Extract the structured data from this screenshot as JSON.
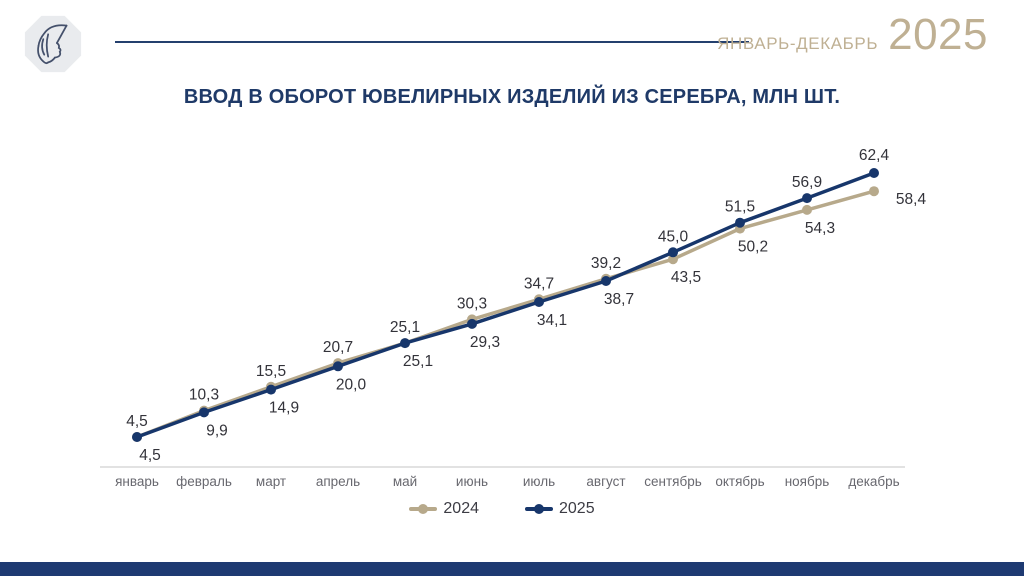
{
  "header": {
    "period_label": "ЯНВАРЬ-ДЕКАБРЬ",
    "year": "2025",
    "logo": "assay-chamber-woman-head-hallmark"
  },
  "title": "ВВОД В ОБОРОТ ЮВЕЛИРНЫХ ИЗДЕЛИЙ ИЗ СЕРЕБРА, МЛН ШТ.",
  "colors": {
    "navy": "#17366b",
    "beige": "#b7a98b",
    "title_navy": "#1f3a68",
    "header_rule": "#24406e",
    "period_tan": "#bfb093",
    "axis_gray": "#d9d9d9",
    "label_dark": "#33333a",
    "month_gray": "#68686f",
    "footer_navy": "#1e3a72"
  },
  "chart_data": {
    "type": "line",
    "title": "ВВОД В ОБОРОТ ЮВЕЛИРНЫХ ИЗДЕЛИЙ ИЗ СЕРЕБРА, МЛН ШТ.",
    "unit": "млн шт.",
    "value_format": "comma-decimal",
    "grid": false,
    "legend_position": "bottom",
    "ylim": [
      0,
      70
    ],
    "categories": [
      "январь",
      "февраль",
      "март",
      "апрель",
      "май",
      "июнь",
      "июль",
      "август",
      "сентябрь",
      "октябрь",
      "ноябрь",
      "декабрь"
    ],
    "series": [
      {
        "name": "2024",
        "color_key": "beige",
        "values": [
          4.5,
          10.3,
          15.5,
          20.7,
          25.1,
          30.3,
          34.7,
          39.2,
          43.5,
          50.2,
          54.3,
          58.4
        ],
        "labels": [
          "4,5",
          "10,3",
          "15,5",
          "20,7",
          "25,1",
          "30,3",
          "34,7",
          "39,2",
          "43,5",
          "50,2",
          "54,3",
          "58,4"
        ]
      },
      {
        "name": "2025",
        "color_key": "navy",
        "values": [
          4.5,
          9.9,
          14.9,
          20.0,
          25.1,
          29.3,
          34.1,
          38.7,
          45.0,
          51.5,
          56.9,
          62.4
        ],
        "labels": [
          "4,5",
          "9,9",
          "14,9",
          "20,0",
          "25,1",
          "29,3",
          "34,1",
          "38,7",
          "45,0",
          "51,5",
          "56,9",
          "62,4"
        ]
      }
    ]
  }
}
